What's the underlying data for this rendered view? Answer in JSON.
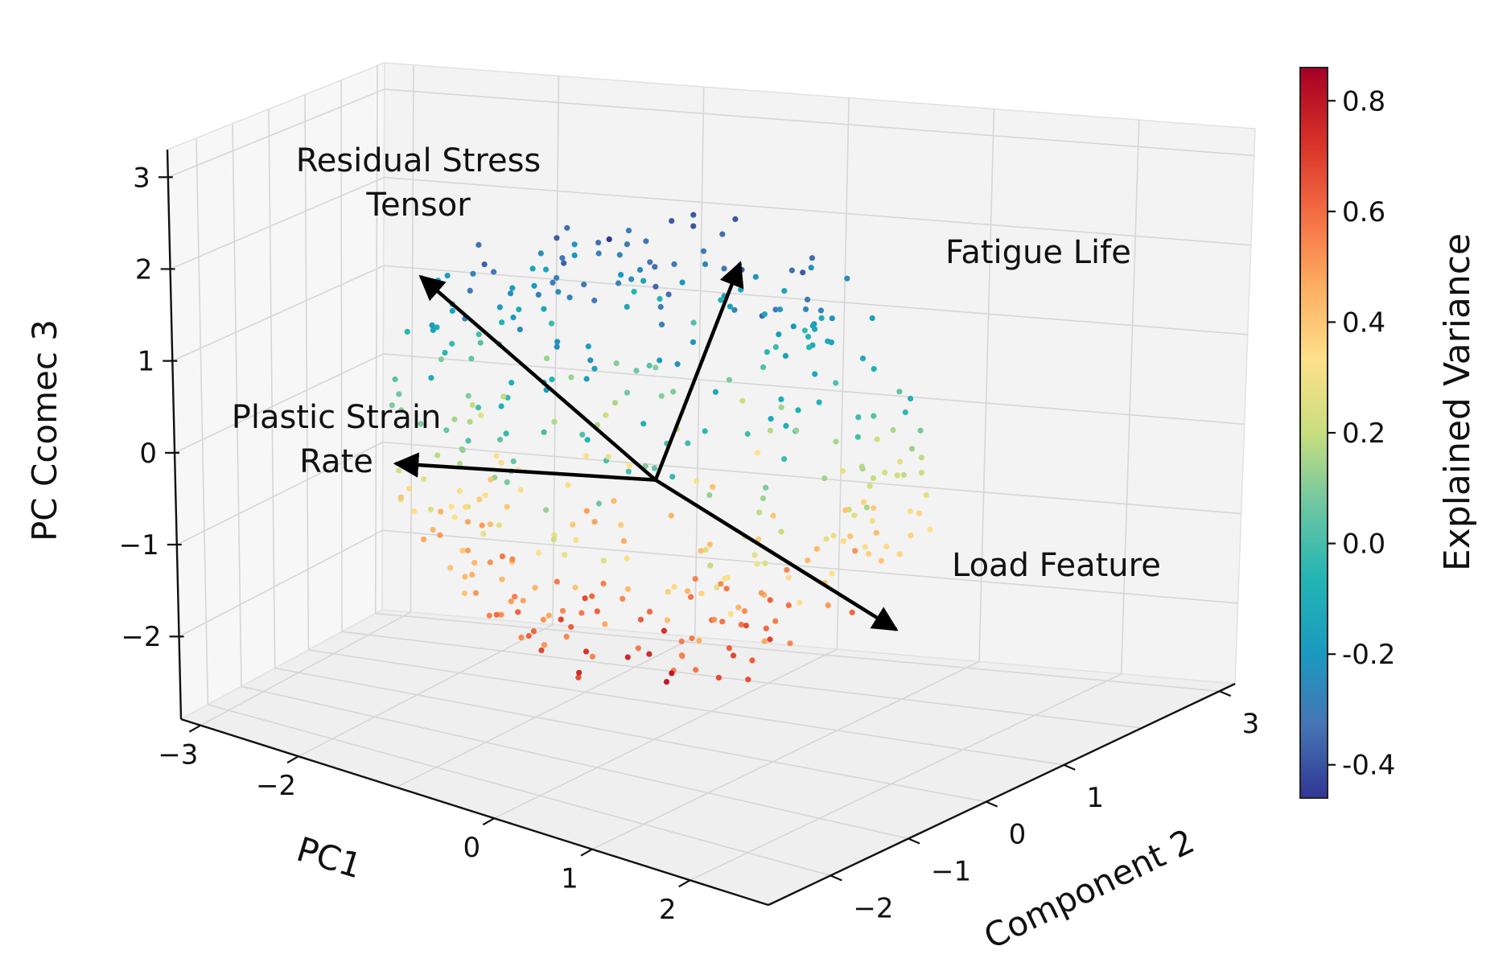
{
  "chart_data": {
    "type": "scatter3d",
    "title": "",
    "xlabel": "PC1",
    "ylabel": "Component 2",
    "zlabel": "PC Ccomec 3",
    "x_ticks": [
      "−3",
      "−2",
      "0",
      "1",
      "2"
    ],
    "x_tick_values": [
      -3,
      -2,
      0,
      1,
      2
    ],
    "y_ticks": [
      "−2",
      "−1",
      "0",
      "1",
      "3"
    ],
    "y_tick_values": [
      -2,
      -1,
      0,
      1,
      3
    ],
    "z_ticks": [
      "3",
      "2",
      "1",
      "0",
      "−1",
      "−2"
    ],
    "z_tick_values": [
      3,
      2,
      1,
      0,
      -1,
      -2
    ],
    "xlim": [
      -3.2,
      2.8
    ],
    "ylim": [
      -2.8,
      3.2
    ],
    "zlim": [
      -2.9,
      3.3
    ],
    "grid": true,
    "vectors": [
      {
        "label_lines": [
          "Residual Stress",
          "Tensor"
        ],
        "dx": -1.1,
        "dy": -2.0,
        "dz": 2.5
      },
      {
        "label_lines": [
          "Fatigue Life"
        ],
        "dx": -0.5,
        "dy": 2.6,
        "dz": 1.55
      },
      {
        "label_lines": [
          "Plastic Strain",
          "Rate"
        ],
        "dx": -1.75,
        "dy": -1.1,
        "dz": 0.0
      },
      {
        "label_lines": [
          "Load Feature"
        ],
        "dx": 1.7,
        "dy": 0.55,
        "dz": -1.45
      }
    ],
    "points": {
      "n": 420,
      "distribution": "roughly spherical cloud centred near the origin, radius about 2.5",
      "color_variable": "Explained Variance",
      "color_relation": "decreasing with vertical PC 3 (top = low, bottom = high)"
    },
    "colorbar": {
      "label": "Explained Variance",
      "ticks": [
        "0.8",
        "0.6",
        "0.4",
        "0.2",
        "0.0",
        "-0.2",
        "-0.4"
      ],
      "tick_values": [
        0.8,
        0.6,
        0.4,
        0.2,
        0.0,
        -0.2,
        -0.4
      ],
      "min": -0.46,
      "max": 0.86,
      "colormap": "RdYlBu_r",
      "colors": [
        "#313695",
        "#4575b4",
        "#1b9ac0",
        "#22b5b4",
        "#6dc6a2",
        "#c9de7e",
        "#fee08b",
        "#fdae61",
        "#f46d43",
        "#d73027",
        "#a50026"
      ]
    }
  }
}
